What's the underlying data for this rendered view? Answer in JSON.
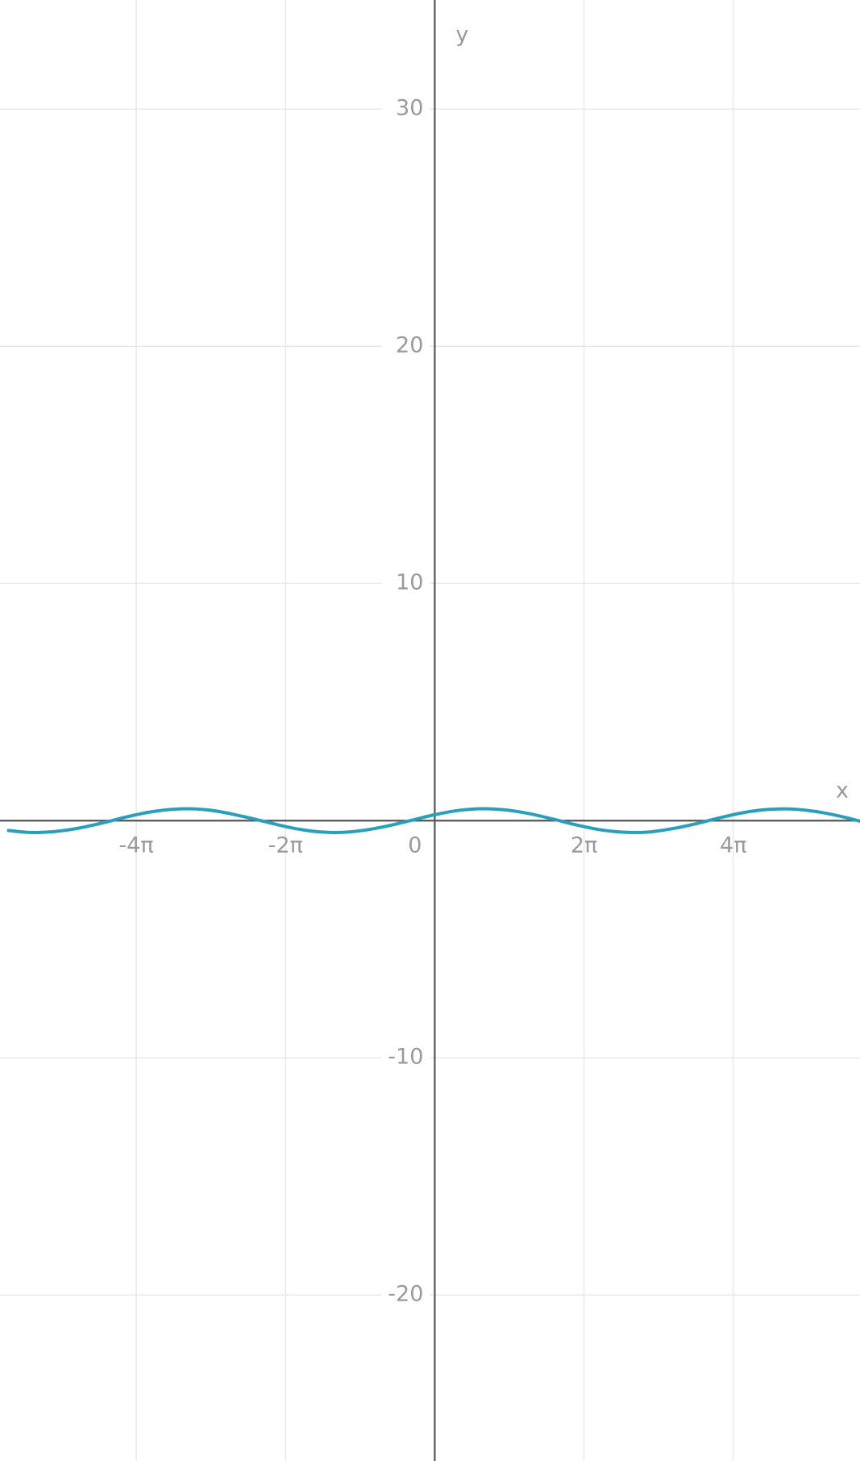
{
  "chart_data": {
    "type": "line",
    "x_label": "x",
    "y_label": "y",
    "x": [
      -18,
      -17,
      -16,
      -15,
      -14,
      -13,
      -12,
      -11,
      -10,
      -9,
      -8,
      -7,
      -6,
      -5,
      -4,
      -3,
      -2,
      -1,
      0,
      1,
      2,
      3,
      4,
      5,
      6,
      7,
      8,
      9,
      10,
      11,
      12,
      13,
      14,
      15,
      16,
      17,
      18
    ],
    "values": [
      -0.41,
      -0.5,
      -0.46,
      -0.32,
      -0.1,
      0.15,
      0.36,
      0.48,
      0.49,
      0.37,
      0.16,
      -0.08,
      -0.31,
      -0.46,
      -0.5,
      -0.41,
      -0.23,
      0.01,
      0.25,
      0.43,
      0.5,
      0.45,
      0.29,
      0.06,
      -0.19,
      -0.39,
      -0.49,
      -0.48,
      -0.34,
      -0.13,
      0.12,
      0.34,
      0.47,
      0.49,
      0.39,
      0.2,
      -0.05
    ],
    "color": "#2a9fbc",
    "xlim": [
      -18.3,
      17.9
    ],
    "ylim": [
      -27,
      34.6
    ],
    "xticks": [
      {
        "value": -12.566,
        "label": "-4π"
      },
      {
        "value": -6.283,
        "label": "-2π"
      },
      0,
      {
        "value": 6.283,
        "label": "2π"
      },
      {
        "value": 12.566,
        "label": "4π"
      }
    ],
    "yticks": [
      -20,
      -10,
      10,
      20,
      30
    ],
    "grid": true
  }
}
